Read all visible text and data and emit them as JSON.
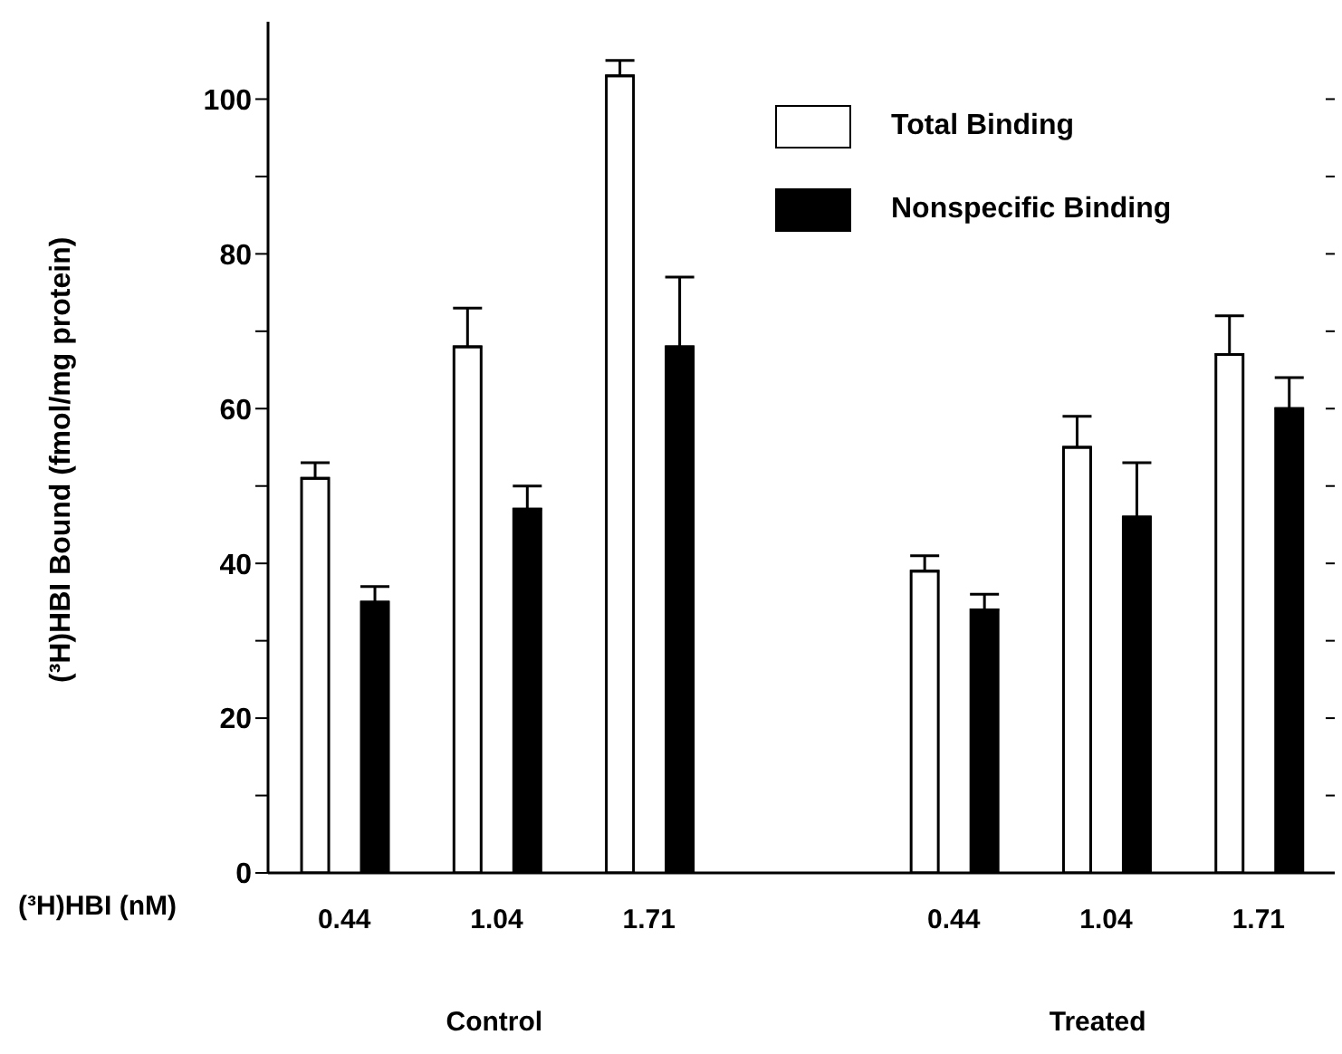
{
  "chart_data": {
    "type": "bar",
    "xlabel": "(³H)HBI (nM)",
    "ylabel": "(³H)HBI Bound (fmol/mg protein)",
    "categories": [
      "0.44",
      "1.04",
      "1.71",
      null,
      "0.44",
      "1.04",
      "1.71"
    ],
    "series": [
      {
        "name": "Total Binding",
        "color": "#ffffff",
        "values": [
          51,
          68,
          103,
          null,
          39,
          55,
          67
        ],
        "errors": [
          [
            51,
            53
          ],
          [
            68,
            73
          ],
          [
            103,
            105
          ],
          null,
          [
            39,
            41
          ],
          [
            55,
            59
          ],
          [
            67,
            72
          ]
        ]
      },
      {
        "name": "Nonspecific Binding",
        "color": "#000000",
        "values": [
          35,
          47,
          68,
          null,
          34,
          46,
          60
        ],
        "errors": [
          [
            35,
            37
          ],
          [
            47,
            50
          ],
          [
            68,
            77
          ],
          null,
          [
            34,
            36
          ],
          [
            46,
            53
          ],
          [
            60,
            64
          ]
        ]
      }
    ],
    "ylim": [
      0,
      110
    ],
    "yticks": [
      0,
      {
        "value": 10,
        "label": null
      },
      20,
      {
        "value": 30,
        "label": null
      },
      40,
      {
        "value": 50,
        "label": null
      },
      60,
      {
        "value": 70,
        "label": null
      },
      80,
      {
        "value": 90,
        "label": null
      },
      100
    ],
    "annotations": [
      "Control",
      "Treated"
    ],
    "legend": "top right"
  }
}
